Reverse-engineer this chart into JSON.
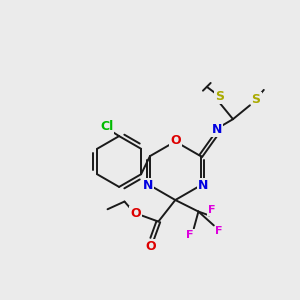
{
  "bg_color": "#ebebeb",
  "bond_color": "#1a1a1a",
  "colors": {
    "C": "#1a1a1a",
    "N": "#0000e0",
    "O": "#dd0000",
    "S": "#aaaa00",
    "F": "#dd00dd",
    "Cl": "#00bb00",
    "H": "#1a1a1a"
  },
  "figsize": [
    3.0,
    3.0
  ],
  "dpi": 100
}
